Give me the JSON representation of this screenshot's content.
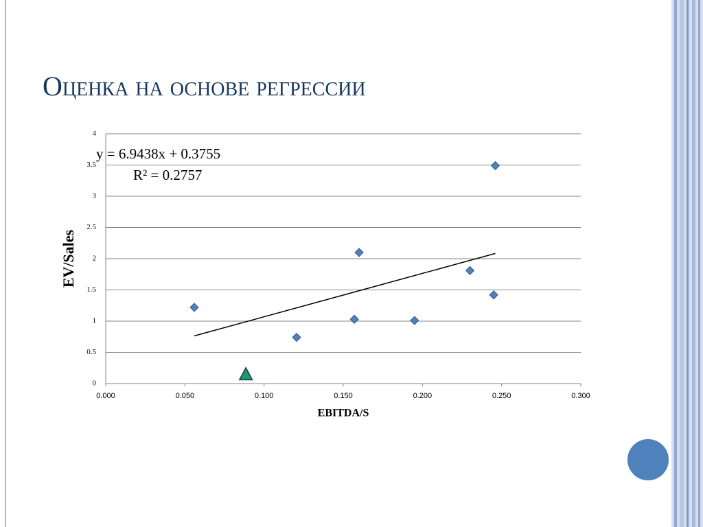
{
  "chart_data": {
    "type": "scatter",
    "title": "Оценка на основе регрессии",
    "x_label": "EBITDA/S",
    "y_label": "EV/Sales",
    "xlim": [
      0,
      0.3
    ],
    "ylim": [
      0,
      4
    ],
    "xticks": [
      {
        "value": 0,
        "label": "0.000"
      },
      {
        "value": 0.05,
        "label": "0.050"
      },
      {
        "value": 0.1,
        "label": "0.100"
      },
      {
        "value": 0.15,
        "label": "0.150"
      },
      {
        "value": 0.2,
        "label": "0.200"
      },
      {
        "value": 0.25,
        "label": "0.250"
      },
      {
        "value": 0.3,
        "label": "0.300"
      }
    ],
    "yticks": [
      0,
      0.5,
      1,
      1.5,
      2,
      2.5,
      3,
      3.5,
      4
    ],
    "grid": true,
    "series": [
      {
        "marker": "diamond",
        "color": "#4f81bd",
        "x": [
          0.0559,
          0.1205,
          0.157,
          0.16,
          0.195,
          0.23,
          0.245,
          0.246
        ],
        "values": [
          1.22,
          0.74,
          1.03,
          2.1,
          1.01,
          1.81,
          1.42,
          3.49
        ]
      },
      {
        "marker": "triangle",
        "color": "#1fa050",
        "x": [
          0.0885
        ],
        "values": [
          0.14
        ]
      }
    ],
    "trendline": {
      "equation": "y = 6.9438x + 0.3755",
      "r2": "R² = 0.2757",
      "x": [
        0.0559,
        0.246
      ],
      "values": [
        0.764,
        2.084
      ]
    }
  }
}
